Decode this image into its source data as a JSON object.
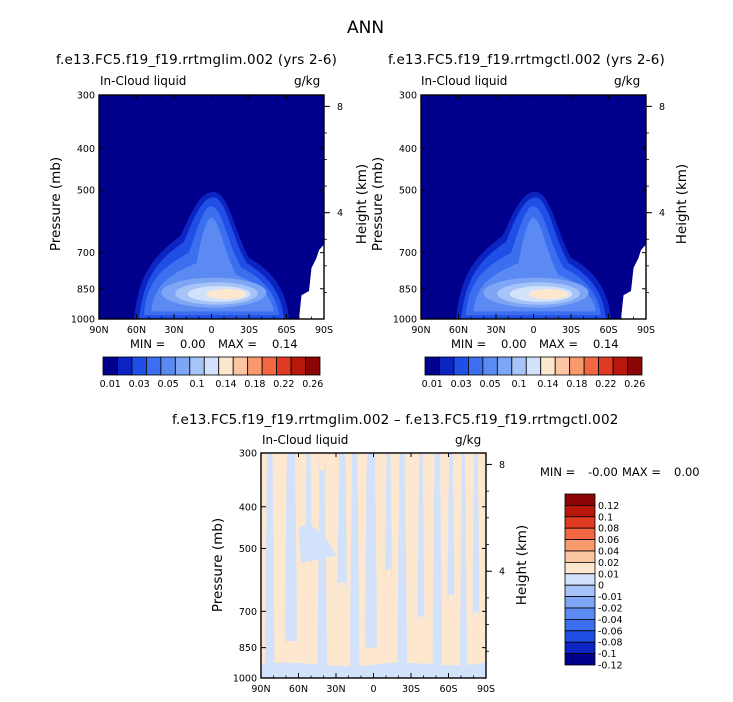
{
  "page": {
    "title": "ANN"
  },
  "colors": {
    "frame": "#000000",
    "background": "#00008c",
    "abs_levels": [
      "#00008c",
      "#0b24c2",
      "#1f4fe6",
      "#3c6ff0",
      "#5b8af2",
      "#7ea6f5",
      "#a7c4f8",
      "#d3e2fb",
      "#fde7cf",
      "#fbc4a3",
      "#f89a6d",
      "#f26741",
      "#e03a22",
      "#b8170c",
      "#8c0505"
    ],
    "diff_levels": [
      "#00008c",
      "#0b24c2",
      "#1f4fe6",
      "#3c6ff0",
      "#5b8af2",
      "#7ea6f5",
      "#a7c4f8",
      "#d3e2fb",
      "#fde7cf",
      "#fbc4a3",
      "#f89a6d",
      "#f26741",
      "#e03a22",
      "#b8170c",
      "#8c0505"
    ],
    "diff_neg": "#d3e2fb",
    "diff_pos": "#fde7cf"
  },
  "chart_data": [
    {
      "type": "heatmap",
      "title": "f.e13.FC5.f19_f19.rrtmglim.002 (yrs 2-6)",
      "field": "In-Cloud liquid",
      "units": "g/kg",
      "xlabel": "",
      "ylabel": "Pressure (mb)",
      "ylabel_right": "Height (km)",
      "x_ticks": [
        "90N",
        "60N",
        "30N",
        "0",
        "30S",
        "60S",
        "90S"
      ],
      "x_values": [
        90,
        60,
        30,
        0,
        -30,
        -60,
        -90
      ],
      "y_ticks": [
        "300",
        "400",
        "500",
        "700",
        "850",
        "1000"
      ],
      "y_values": [
        300,
        400,
        500,
        700,
        850,
        1000
      ],
      "y_right_ticks": [
        "8",
        "4"
      ],
      "y_right_values": [
        8,
        4
      ],
      "ylim": [
        1000,
        300
      ],
      "min_label": "MIN =",
      "min_value": "0.00",
      "max_label": "MAX =",
      "max_value": "0.14",
      "colorbar_labels": [
        "0.01",
        "0.03",
        "0.05",
        "0.1",
        "0.14",
        "0.18",
        "0.22",
        "0.26"
      ],
      "contour_levels": [
        0.01,
        0.02,
        0.03,
        0.04,
        0.05,
        0.07,
        0.1,
        0.12,
        0.14,
        0.16,
        0.18,
        0.2,
        0.22,
        0.24,
        0.26
      ]
    },
    {
      "type": "heatmap",
      "title": "f.e13.FC5.f19_f19.rrtmgctl.002 (yrs 2-6)",
      "field": "In-Cloud liquid",
      "units": "g/kg",
      "xlabel": "",
      "ylabel": "Pressure (mb)",
      "ylabel_right": "Height (km)",
      "x_ticks": [
        "90N",
        "60N",
        "30N",
        "0",
        "30S",
        "60S",
        "90S"
      ],
      "x_values": [
        90,
        60,
        30,
        0,
        -30,
        -60,
        -90
      ],
      "y_ticks": [
        "300",
        "400",
        "500",
        "700",
        "850",
        "1000"
      ],
      "y_values": [
        300,
        400,
        500,
        700,
        850,
        1000
      ],
      "y_right_ticks": [
        "8",
        "4"
      ],
      "y_right_values": [
        8,
        4
      ],
      "ylim": [
        1000,
        300
      ],
      "min_label": "MIN =",
      "min_value": "0.00",
      "max_label": "MAX =",
      "max_value": "0.14",
      "colorbar_labels": [
        "0.01",
        "0.03",
        "0.05",
        "0.1",
        "0.14",
        "0.18",
        "0.22",
        "0.26"
      ],
      "contour_levels": [
        0.01,
        0.02,
        0.03,
        0.04,
        0.05,
        0.07,
        0.1,
        0.12,
        0.14,
        0.16,
        0.18,
        0.2,
        0.22,
        0.24,
        0.26
      ]
    },
    {
      "type": "heatmap",
      "title": "f.e13.FC5.f19_f19.rrtmglim.002 – f.e13.FC5.f19_f19.rrtmgctl.002",
      "field": "In-Cloud liquid",
      "units": "g/kg",
      "xlabel": "",
      "ylabel": "Pressure (mb)",
      "ylabel_right": "Height (km)",
      "x_ticks": [
        "90N",
        "60N",
        "30N",
        "0",
        "30S",
        "60S",
        "90S"
      ],
      "x_values": [
        90,
        60,
        30,
        0,
        -30,
        -60,
        -90
      ],
      "y_ticks": [
        "300",
        "400",
        "500",
        "700",
        "850",
        "1000"
      ],
      "y_values": [
        300,
        400,
        500,
        700,
        850,
        1000
      ],
      "y_right_ticks": [
        "8",
        "4"
      ],
      "y_right_values": [
        8,
        4
      ],
      "ylim": [
        1000,
        300
      ],
      "min_label": "MIN =",
      "min_value": "-0.00",
      "max_label": "MAX =",
      "max_value": "0.00",
      "colorbar_labels": [
        "0.12",
        "0.1",
        "0.08",
        "0.06",
        "0.04",
        "0.02",
        "0.01",
        "0",
        "-0.01",
        "-0.02",
        "-0.04",
        "-0.06",
        "-0.08",
        "-0.1",
        "-0.12"
      ]
    }
  ]
}
